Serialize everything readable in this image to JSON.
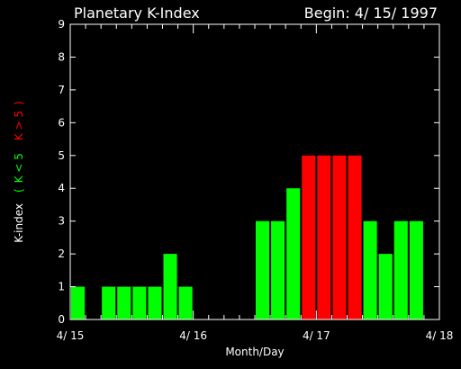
{
  "chart_data": {
    "type": "bar",
    "title": "Planetary K-Index",
    "subtitle": "Begin: 4/ 15/ 1997",
    "xlabel": "Month/Day",
    "ylabel": {
      "prefix": "K-index",
      "open": "(",
      "low_part": "K < 5",
      "high_part": "K > 5",
      "close": ")"
    },
    "ylim": [
      0,
      9
    ],
    "yticks": [
      "0",
      "1",
      "2",
      "3",
      "4",
      "5",
      "6",
      "7",
      "8",
      "9"
    ],
    "x_range_days": [
      0,
      3
    ],
    "x_tick_labels": [
      "4/ 15",
      "4/ 16",
      "4/ 17",
      "4/ 18"
    ],
    "interval_hours": 3,
    "values": [
      1,
      0,
      1,
      1,
      1,
      1,
      2,
      1,
      0,
      0,
      0,
      0,
      3,
      3,
      4,
      5,
      5,
      5,
      5,
      3,
      2,
      3,
      3,
      0
    ],
    "colors": {
      "normal": "#00ff00",
      "storm": "#ff0000",
      "axis": "#ffffff",
      "background": "#000000"
    },
    "storm_threshold": 5
  }
}
